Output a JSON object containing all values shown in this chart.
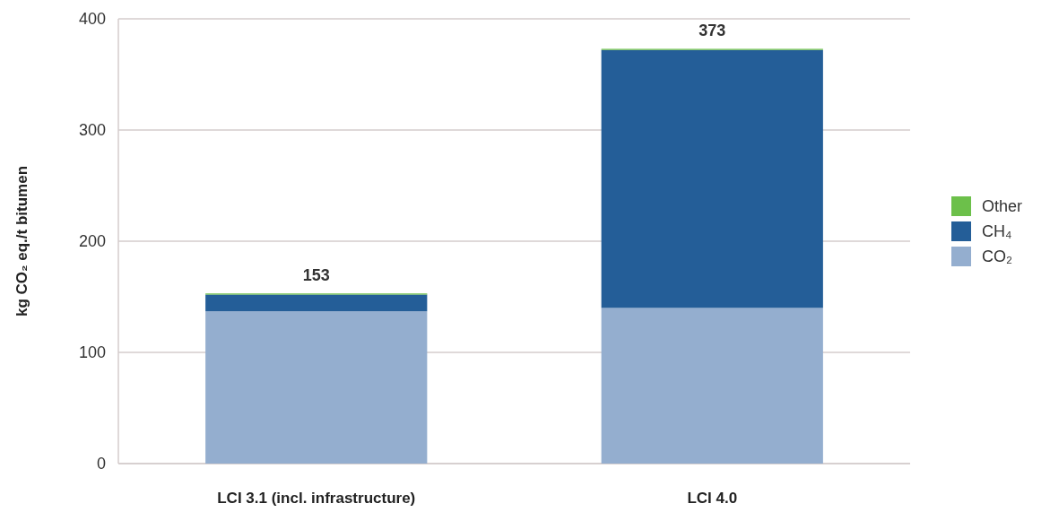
{
  "chart_data": {
    "type": "bar",
    "ylabel": "kg CO₂ eq./t bitumen",
    "categories": [
      "LCI 3.1 (incl. infrastructure)",
      "LCI 4.0"
    ],
    "stacked": true,
    "series": [
      {
        "name": "CO₂",
        "color": "#94aecf",
        "values": [
          137,
          140
        ]
      },
      {
        "name": "CH₄",
        "color": "#245e98",
        "values": [
          15,
          232
        ]
      },
      {
        "name": "Other",
        "color": "#6cc04a",
        "values": [
          1,
          1
        ]
      }
    ],
    "totals": [
      "153",
      "373"
    ],
    "ylim": [
      0,
      400
    ],
    "yticks": [
      0,
      100,
      200,
      300,
      400
    ],
    "grid": "y",
    "legend": "right"
  }
}
